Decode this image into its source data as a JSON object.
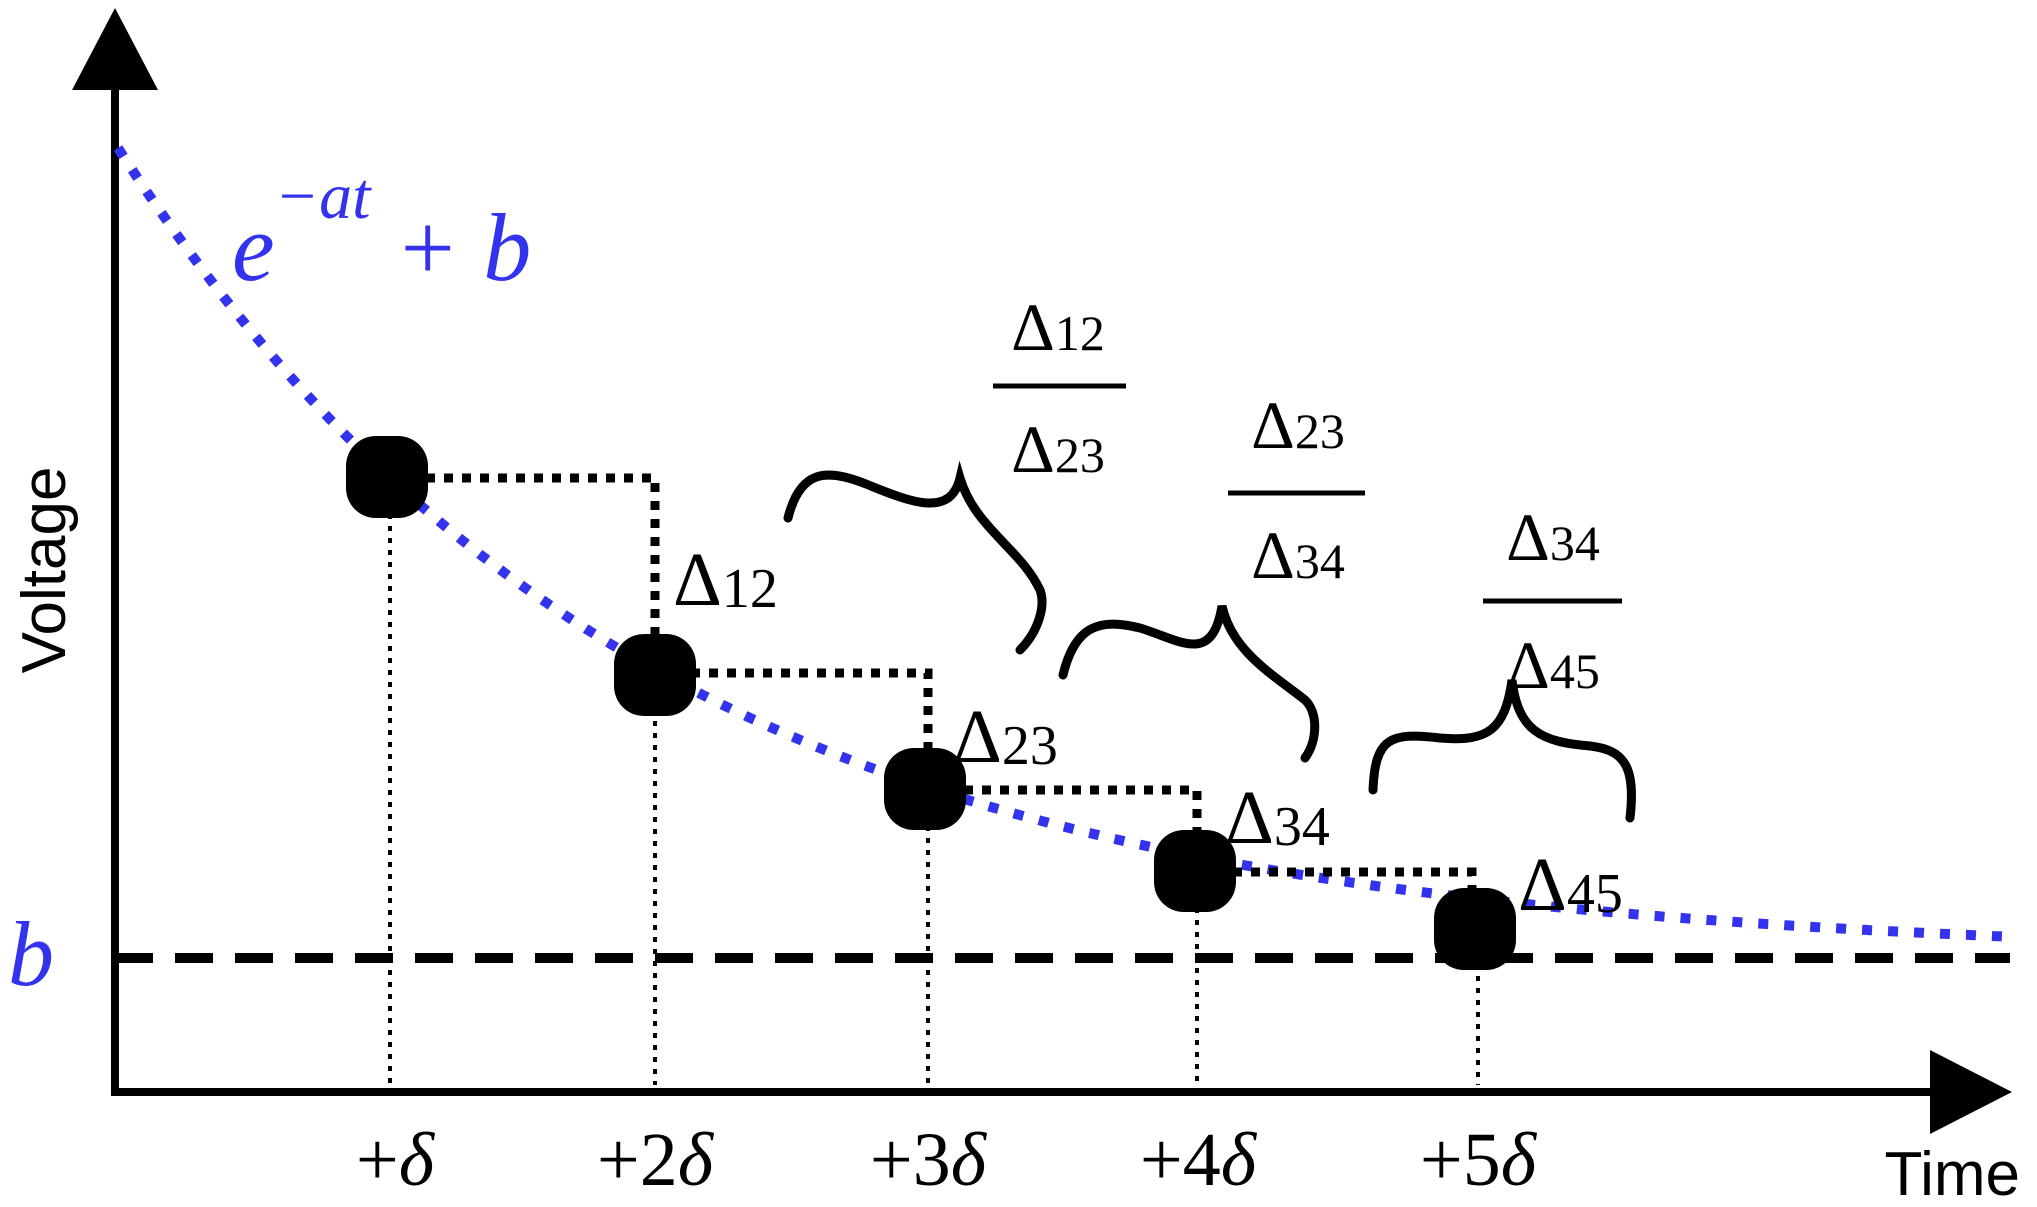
{
  "colors": {
    "curve": "#3333ee",
    "ink": "#000000",
    "background": "#ffffff"
  },
  "axes": {
    "y_label": "Voltage",
    "x_label": "Time"
  },
  "formula": {
    "base": "e",
    "exponent": "−at",
    "tail": " + b"
  },
  "asymptote_label": "b",
  "ticks": [
    {
      "pre": "+",
      "label": "δ"
    },
    {
      "pre": "+2",
      "label": "δ"
    },
    {
      "pre": "+3",
      "label": "δ"
    },
    {
      "pre": "+4",
      "label": "δ"
    },
    {
      "pre": "+5",
      "label": "δ"
    }
  ],
  "deltas": [
    {
      "symbol": "Δ",
      "sub": "12"
    },
    {
      "symbol": "Δ",
      "sub": "23"
    },
    {
      "symbol": "Δ",
      "sub": "34"
    },
    {
      "symbol": "Δ",
      "sub": "45"
    }
  ],
  "ratios": [
    {
      "num_symbol": "Δ",
      "num_sub": "12",
      "den_symbol": "Δ",
      "den_sub": "23"
    },
    {
      "num_symbol": "Δ",
      "num_sub": "23",
      "den_symbol": "Δ",
      "den_sub": "34"
    },
    {
      "num_symbol": "Δ",
      "num_sub": "34",
      "den_symbol": "Δ",
      "den_sub": "45"
    }
  ]
}
